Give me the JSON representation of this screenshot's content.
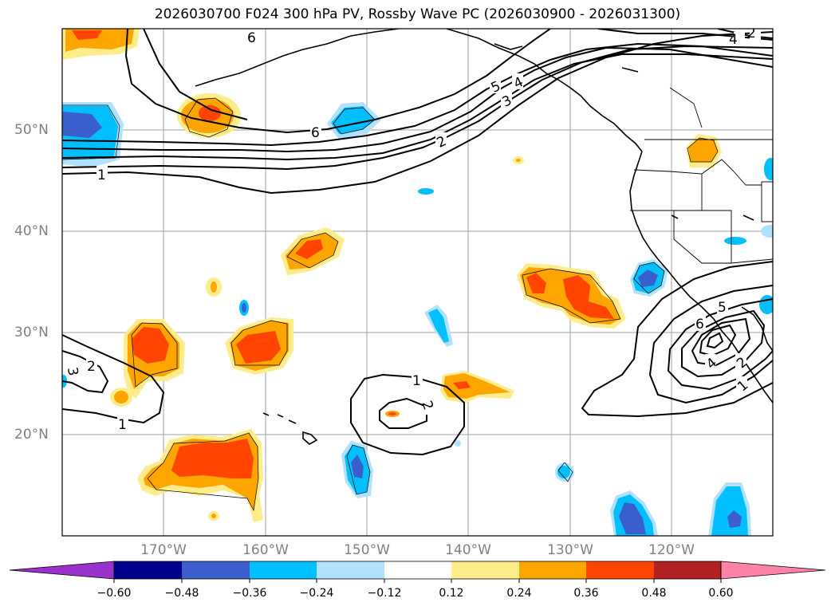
{
  "title": "2026030700 F024 300 hPa PV, Rossby Wave PC (2026030900 - 2026031300)",
  "map": {
    "projection": "PlateCarree",
    "extent": {
      "lon_min": -180,
      "lon_max": -110,
      "lat_min": 10,
      "lat_max": 60
    },
    "gridlines_lon": [
      -170,
      -160,
      -150,
      -140,
      -130,
      -120
    ],
    "gridlines_lat": [
      20,
      30,
      40,
      50
    ],
    "lon_labels": [
      "170°W",
      "160°W",
      "150°W",
      "140°W",
      "130°W",
      "120°W"
    ],
    "lat_labels": [
      "20°N",
      "30°N",
      "40°N",
      "50°N"
    ]
  },
  "pv_contour_labels": [
    "1",
    "2",
    "3",
    "4",
    "5",
    "6"
  ],
  "contour_label_values": [
    "6",
    "5",
    "4",
    "3",
    "2",
    "1",
    "1",
    "2",
    "3",
    "2",
    "6",
    "5",
    "4",
    "2",
    "1",
    "1",
    "2",
    "3",
    "4",
    "6",
    "7"
  ],
  "colorbar": {
    "labels": [
      "−0.60",
      "−0.48",
      "−0.36",
      "−0.24",
      "−0.12",
      "0.12",
      "0.24",
      "0.36",
      "0.48",
      "0.60"
    ],
    "colors": [
      "#9932cc",
      "#00008b",
      "#3a5fcd",
      "#00bfff",
      "#b0e2ff",
      "#ffffff",
      "#ffec8b",
      "#ffa500",
      "#ff4500",
      "#b22222",
      "#ff83a8"
    ]
  }
}
